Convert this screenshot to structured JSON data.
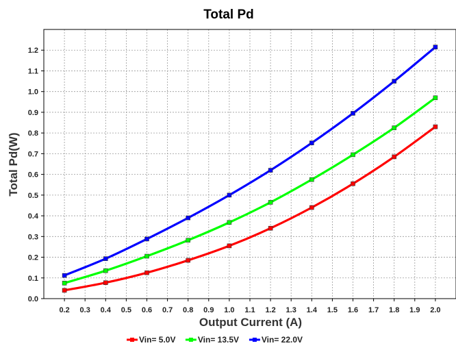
{
  "chart_data": {
    "type": "line",
    "title": "Total Pd",
    "xlabel": "Output Current (A)",
    "ylabel": "Total Pd(W)",
    "xlim": [
      0.1,
      2.1
    ],
    "ylim": [
      0,
      1.3
    ],
    "x_ticks": [
      "0.2",
      "0.3",
      "0.4",
      "0.5",
      "0.6",
      "0.7",
      "0.8",
      "0.9",
      "1.0",
      "1.1",
      "1.2",
      "1.3",
      "1.4",
      "1.5",
      "1.6",
      "1.7",
      "1.8",
      "1.9",
      "2.0"
    ],
    "y_ticks": [
      "0.0",
      "0.1",
      "0.2",
      "0.3",
      "0.4",
      "0.5",
      "0.6",
      "0.7",
      "0.8",
      "0.9",
      "1.0",
      "1.1",
      "1.2"
    ],
    "grid": true,
    "legend_position": "bottom",
    "series": [
      {
        "name": "Vin= 5.0V",
        "color": "#ff0000",
        "x": [
          0.2,
          0.4,
          0.6,
          0.8,
          1.0,
          1.2,
          1.4,
          1.6,
          1.8,
          2.0
        ],
        "values": [
          0.04,
          0.077,
          0.125,
          0.185,
          0.255,
          0.34,
          0.44,
          0.555,
          0.685,
          0.83
        ]
      },
      {
        "name": "Vin= 13.5V",
        "color": "#00ff00",
        "x": [
          0.2,
          0.4,
          0.6,
          0.8,
          1.0,
          1.2,
          1.4,
          1.6,
          1.8,
          2.0
        ],
        "values": [
          0.075,
          0.135,
          0.205,
          0.282,
          0.368,
          0.465,
          0.575,
          0.695,
          0.825,
          0.97
        ]
      },
      {
        "name": "Vin= 22.0V",
        "color": "#0000ff",
        "x": [
          0.2,
          0.4,
          0.6,
          0.8,
          1.0,
          1.2,
          1.4,
          1.6,
          1.8,
          2.0
        ],
        "values": [
          0.112,
          0.193,
          0.288,
          0.39,
          0.5,
          0.62,
          0.752,
          0.895,
          1.05,
          1.215
        ]
      }
    ]
  }
}
